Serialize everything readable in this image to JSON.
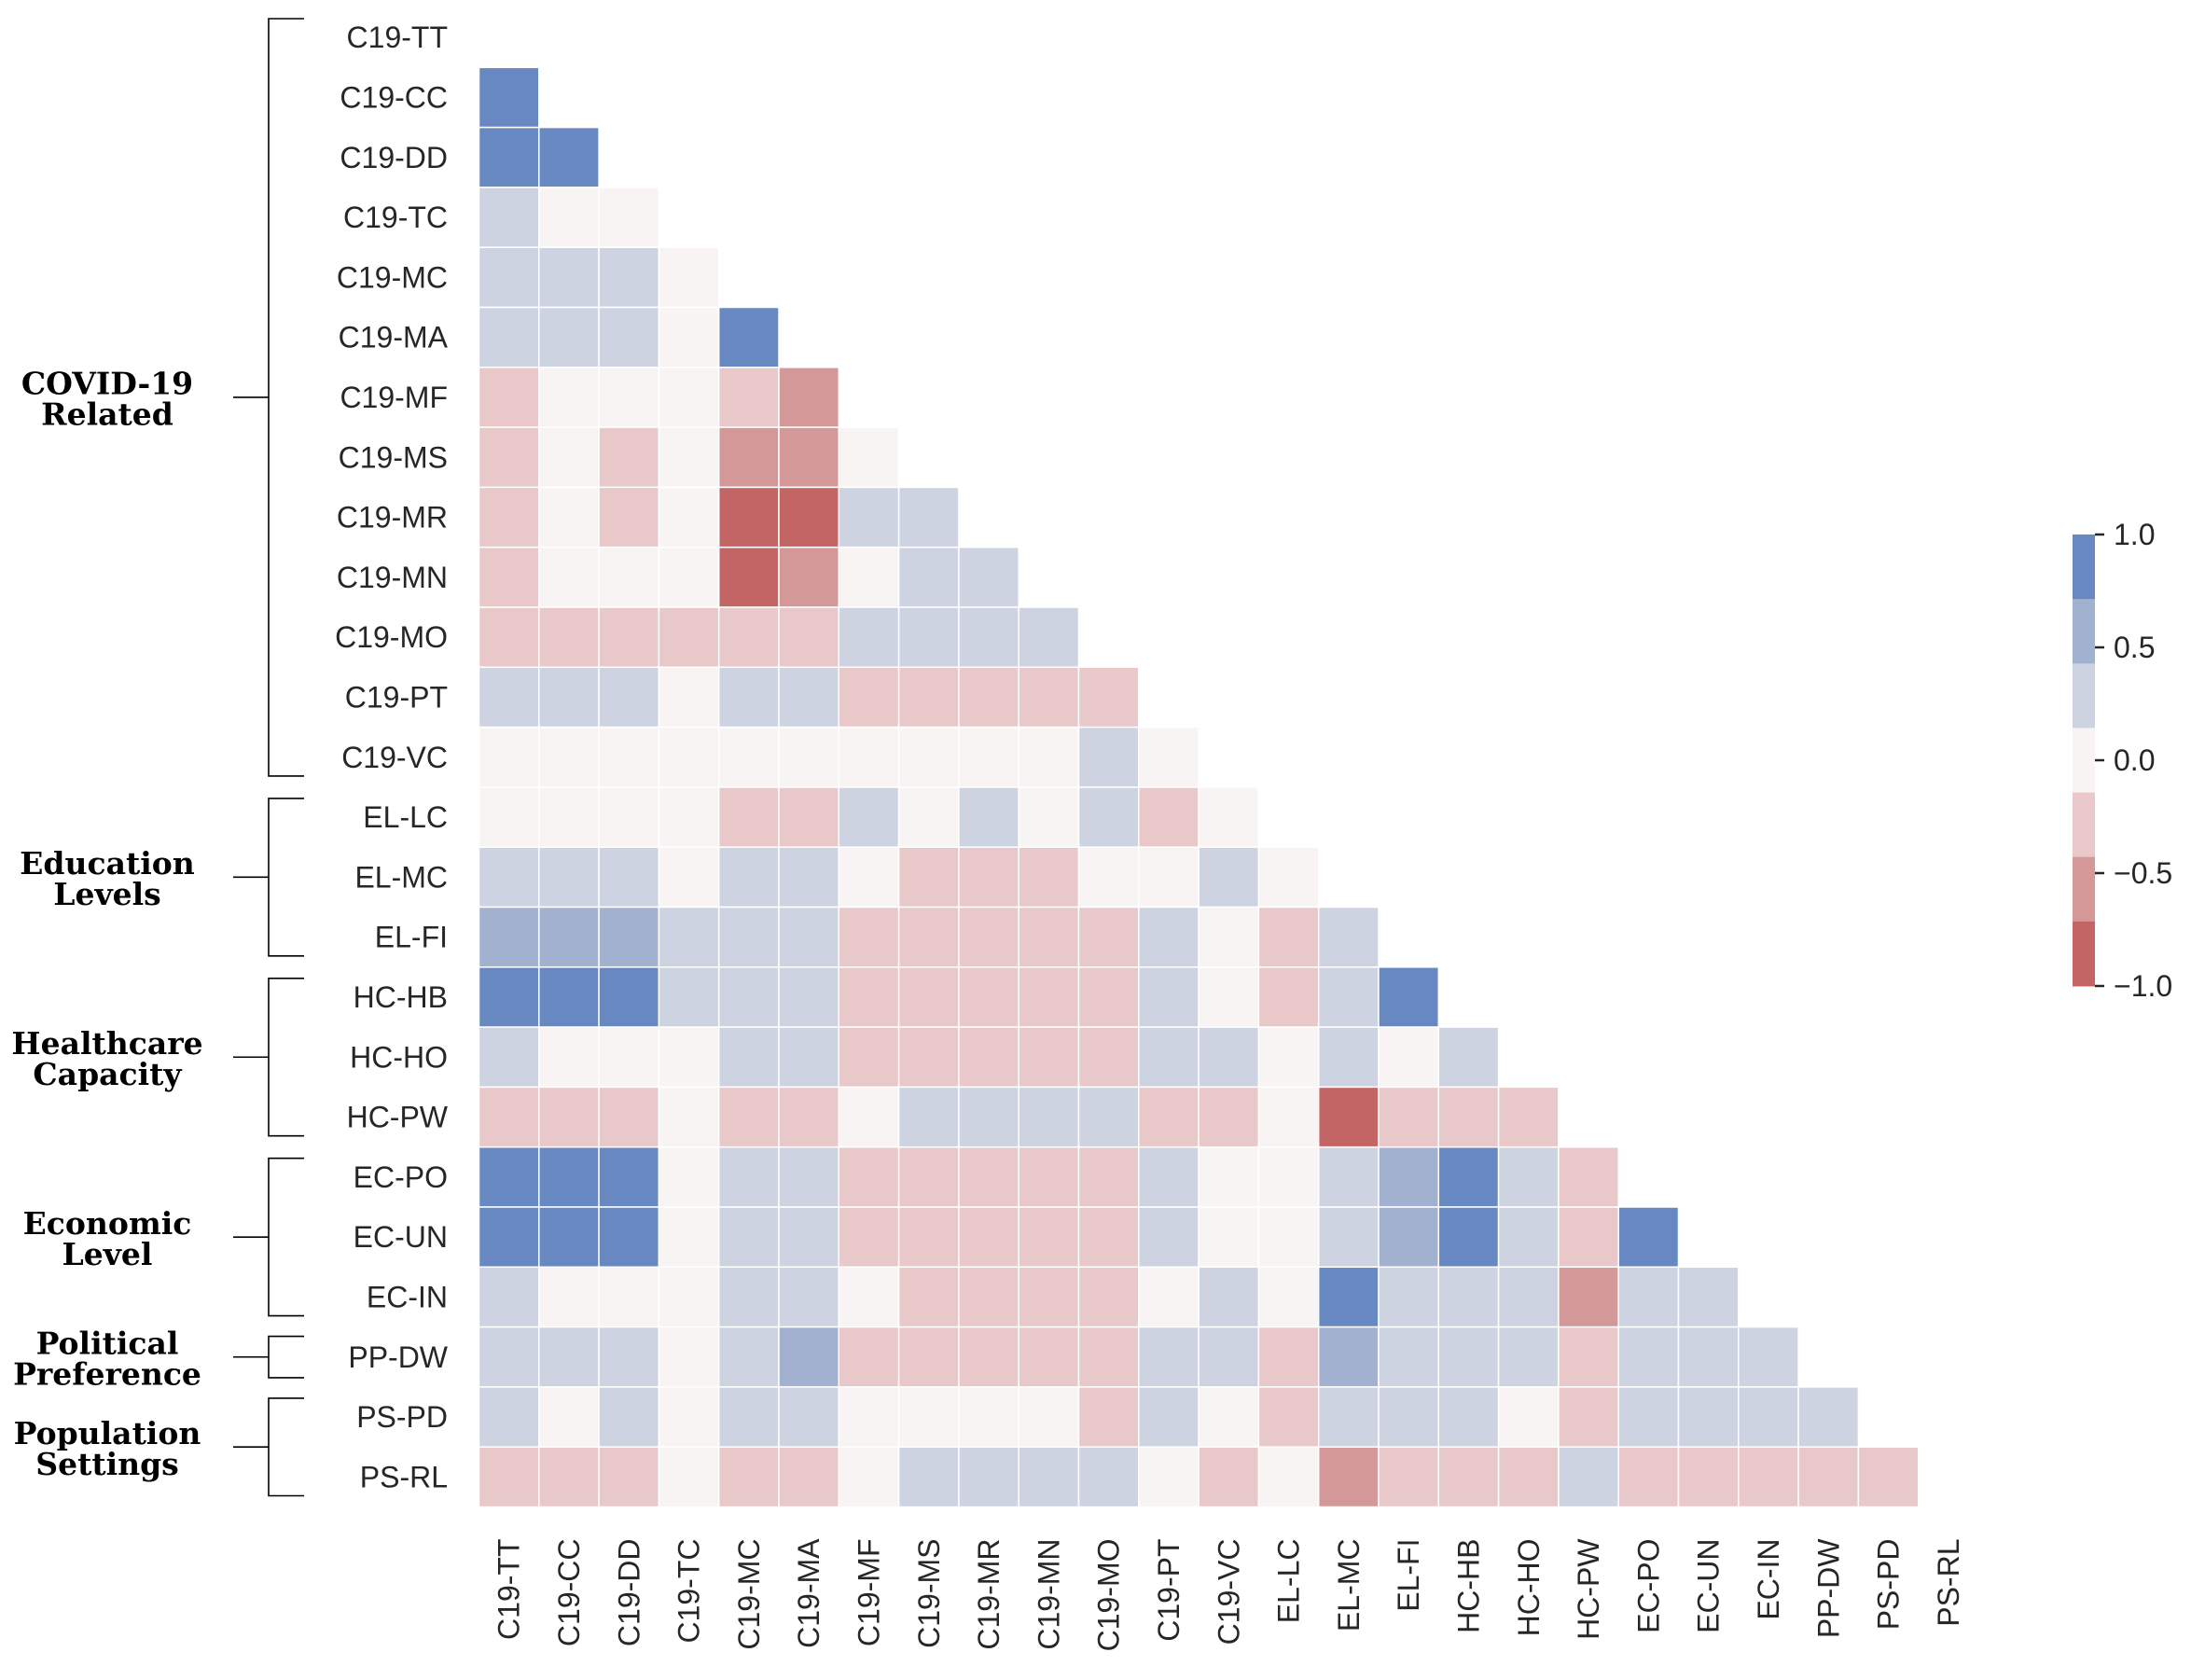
{
  "chart_data": {
    "type": "heatmap",
    "variables": [
      "C19-TT",
      "C19-CC",
      "C19-DD",
      "C19-TC",
      "C19-MC",
      "C19-MA",
      "C19-MF",
      "C19-MS",
      "C19-MR",
      "C19-MN",
      "C19-MO",
      "C19-PT",
      "C19-VC",
      "EL-LC",
      "EL-MC",
      "EL-FI",
      "HC-HB",
      "HC-HO",
      "HC-PW",
      "EC-PO",
      "EC-UN",
      "EC-IN",
      "PP-DW",
      "PS-PD",
      "PS-RL"
    ],
    "lower_triangle": [
      [],
      [
        0.85
      ],
      [
        0.85,
        0.85
      ],
      [
        0.2,
        0,
        0
      ],
      [
        0.2,
        0.2,
        0.2,
        0
      ],
      [
        0.2,
        0.2,
        0.2,
        0,
        0.85
      ],
      [
        -0.2,
        0,
        0,
        0,
        -0.2,
        -0.5
      ],
      [
        -0.2,
        0,
        -0.2,
        0,
        -0.5,
        -0.5,
        0
      ],
      [
        -0.2,
        0,
        -0.2,
        0,
        -0.85,
        -0.85,
        0.2,
        0.2
      ],
      [
        -0.2,
        0,
        0,
        0,
        -0.85,
        -0.5,
        0,
        0.2,
        0.2
      ],
      [
        -0.2,
        -0.2,
        -0.2,
        -0.2,
        -0.2,
        -0.2,
        0.2,
        0.2,
        0.2,
        0.2
      ],
      [
        0.2,
        0.2,
        0.2,
        0,
        0.2,
        0.2,
        -0.2,
        -0.2,
        -0.2,
        -0.2,
        -0.2
      ],
      [
        0,
        0,
        0,
        0,
        0,
        0,
        0,
        0,
        0,
        0,
        0.2,
        0
      ],
      [
        0,
        0,
        0,
        0,
        -0.2,
        -0.2,
        0.2,
        0,
        0.2,
        0,
        0.2,
        -0.2,
        0
      ],
      [
        0.2,
        0.2,
        0.2,
        0,
        0.2,
        0.2,
        0,
        -0.2,
        -0.2,
        -0.2,
        0,
        0,
        0.2,
        0
      ],
      [
        0.5,
        0.5,
        0.5,
        0.2,
        0.2,
        0.2,
        -0.2,
        -0.2,
        -0.2,
        -0.2,
        -0.2,
        0.2,
        0,
        -0.2,
        0.2
      ],
      [
        0.85,
        0.85,
        0.85,
        0.2,
        0.2,
        0.2,
        -0.2,
        -0.2,
        -0.2,
        -0.2,
        -0.2,
        0.2,
        0,
        -0.2,
        0.2,
        0.85
      ],
      [
        0.2,
        0,
        0,
        0,
        0.2,
        0.2,
        -0.2,
        -0.2,
        -0.2,
        -0.2,
        -0.2,
        0.2,
        0.2,
        0,
        0.2,
        0,
        0.2
      ],
      [
        -0.2,
        -0.2,
        -0.2,
        0,
        -0.2,
        -0.2,
        0,
        0.2,
        0.2,
        0.2,
        0.2,
        -0.2,
        -0.2,
        0,
        -0.85,
        -0.2,
        -0.2,
        -0.2
      ],
      [
        0.85,
        0.85,
        0.85,
        0,
        0.2,
        0.2,
        -0.2,
        -0.2,
        -0.2,
        -0.2,
        -0.2,
        0.2,
        0,
        0,
        0.2,
        0.5,
        0.85,
        0.2,
        -0.2
      ],
      [
        0.85,
        0.85,
        0.85,
        0,
        0.2,
        0.2,
        -0.2,
        -0.2,
        -0.2,
        -0.2,
        -0.2,
        0.2,
        0,
        0,
        0.2,
        0.5,
        0.85,
        0.2,
        -0.2,
        0.85
      ],
      [
        0.2,
        0,
        0,
        0,
        0.2,
        0.2,
        0,
        -0.2,
        -0.2,
        -0.2,
        -0.2,
        0,
        0.2,
        0,
        0.85,
        0.2,
        0.2,
        0.2,
        -0.5,
        0.2,
        0.2
      ],
      [
        0.2,
        0.2,
        0.2,
        0,
        0.2,
        0.5,
        -0.2,
        -0.2,
        -0.2,
        -0.2,
        -0.2,
        0.2,
        0.2,
        -0.2,
        0.5,
        0.2,
        0.2,
        0.2,
        -0.2,
        0.2,
        0.2,
        0.2
      ],
      [
        0.2,
        0,
        0.2,
        0,
        0.2,
        0.2,
        0,
        0,
        0,
        0,
        -0.2,
        0.2,
        0,
        -0.2,
        0.2,
        0.2,
        0.2,
        0,
        -0.2,
        0.2,
        0.2,
        0.2,
        0.2
      ],
      [
        -0.2,
        -0.2,
        -0.2,
        0,
        -0.2,
        -0.2,
        0,
        0.2,
        0.2,
        0.2,
        0.2,
        0,
        -0.2,
        0,
        -0.5,
        -0.2,
        -0.2,
        -0.2,
        0.2,
        -0.2,
        -0.2,
        -0.2,
        -0.2,
        -0.2
      ]
    ],
    "colorbar": {
      "range": [
        -1.0,
        1.0
      ],
      "tick_values": [
        1.0,
        0.5,
        0.0,
        -0.5,
        -1.0
      ],
      "tick_labels": [
        "1.0",
        "0.5",
        "0.0",
        "−0.5",
        "−1.0"
      ],
      "bins": [
        {
          "from": 0.75,
          "to": 1.0,
          "color": "#6788c0"
        },
        {
          "from": 0.25,
          "to": 0.75,
          "color": "#cdd3e1"
        },
        {
          "from": -0.25,
          "to": 0.25,
          "color": "#f8f4f4"
        },
        {
          "from": -0.75,
          "to": -0.25,
          "color": "#e8c8c8"
        },
        {
          "from": -1.0,
          "to": -0.75,
          "color": "#c46565"
        }
      ],
      "bar_colors": [
        "#6788c0",
        "#a1b1cf",
        "#cdd3e1",
        "#f8f4f4",
        "#e8c8c8",
        "#d49898",
        "#c46565"
      ]
    },
    "value_colors": {
      "0.85": "#6788c0",
      "0.5": "#a1b1cf",
      "0.2": "#cdd3e1",
      "0": "#f8f4f4",
      "-0.2": "#e8c8c8",
      "-0.5": "#d49898",
      "-0.85": "#c46565"
    },
    "groups": [
      {
        "lines": [
          "COVID-19",
          "Related"
        ],
        "first": 0,
        "last": 12
      },
      {
        "lines": [
          "Education",
          "Levels"
        ],
        "first": 13,
        "last": 15
      },
      {
        "lines": [
          "Healthcare",
          "Capacity"
        ],
        "first": 16,
        "last": 18
      },
      {
        "lines": [
          "Economic",
          "Level"
        ],
        "first": 19,
        "last": 21
      },
      {
        "lines": [
          "Political",
          "Preference"
        ],
        "first": 22,
        "last": 22
      },
      {
        "lines": [
          "Population",
          "Settings"
        ],
        "first": 23,
        "last": 24
      }
    ]
  }
}
